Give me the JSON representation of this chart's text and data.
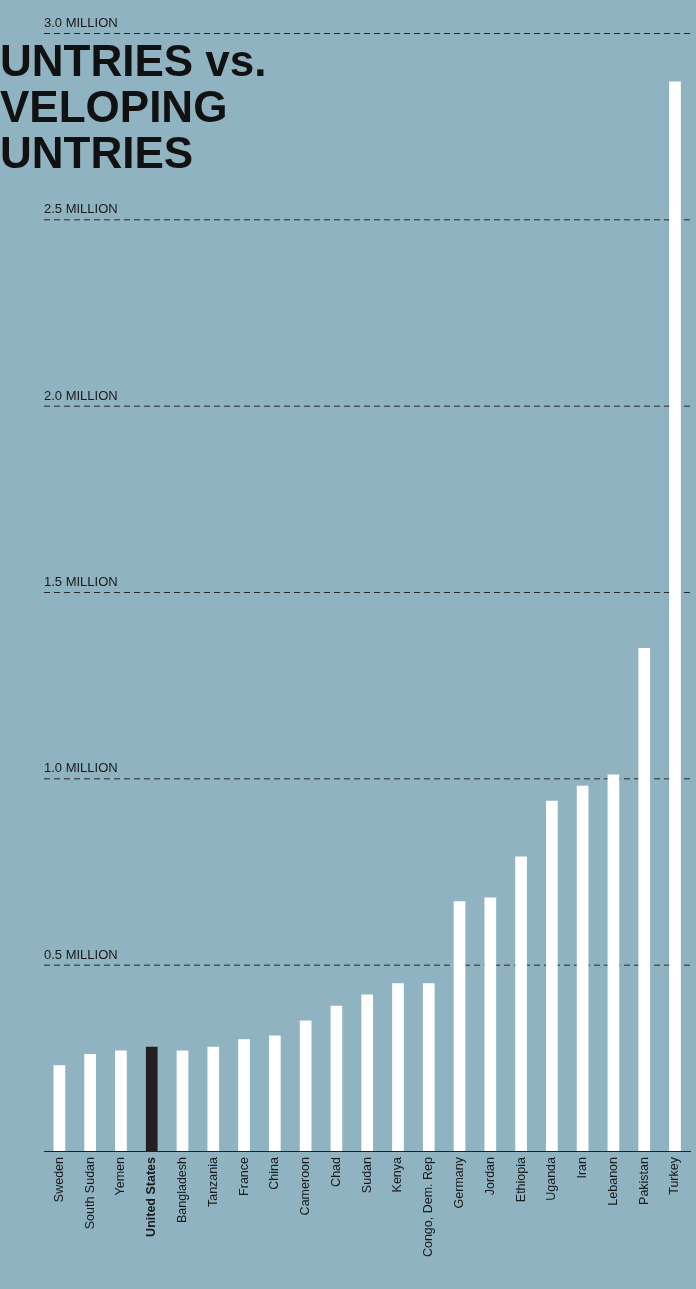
{
  "chart_data": {
    "type": "bar",
    "title": "UNTRIES vs. VELOPING UNTRIES",
    "categories": [
      "Sweden",
      "South Sudan",
      "Yemen",
      "United States",
      "Bangladesh",
      "Tanzania",
      "France",
      "China",
      "Cameroon",
      "Chad",
      "Sudan",
      "Kenya",
      "Congo, Dem. Rep",
      "Germany",
      "Jordan",
      "Ethiopia",
      "Uganda",
      "Iran",
      "Lebanon",
      "Pakistan",
      "Turkey"
    ],
    "values": [
      0.23,
      0.26,
      0.27,
      0.28,
      0.27,
      0.28,
      0.3,
      0.31,
      0.35,
      0.39,
      0.42,
      0.45,
      0.45,
      0.67,
      0.68,
      0.79,
      0.94,
      0.98,
      1.01,
      1.35,
      2.87
    ],
    "colors": [
      "#ffffff",
      "#ffffff",
      "#ffffff",
      "#231f20",
      "#ffffff",
      "#ffffff",
      "#ffffff",
      "#ffffff",
      "#ffffff",
      "#ffffff",
      "#ffffff",
      "#ffffff",
      "#ffffff",
      "#ffffff",
      "#ffffff",
      "#ffffff",
      "#ffffff",
      "#ffffff",
      "#ffffff",
      "#ffffff",
      "#ffffff"
    ],
    "ylim": [
      0,
      3.0
    ],
    "yticks": [
      {
        "value": 0.5,
        "label": "0.5 MILLION"
      },
      {
        "value": 1.0,
        "label": "1.0 MILLION"
      },
      {
        "value": 1.5,
        "label": "1.5 MILLION"
      },
      {
        "value": 2.0,
        "label": "2.0 MILLION"
      },
      {
        "value": 2.5,
        "label": "2.5 MILLION"
      },
      {
        "value": 3.0,
        "label": "3.0 MILLION"
      }
    ],
    "grid": "y",
    "legend": false
  }
}
